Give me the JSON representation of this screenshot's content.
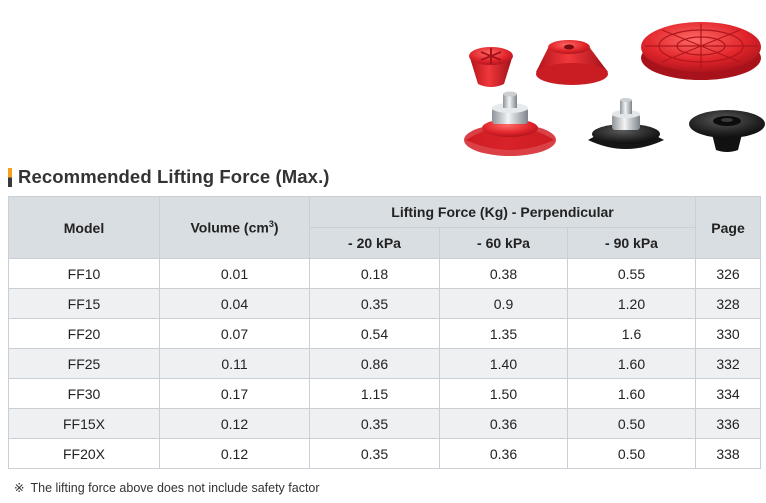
{
  "section": {
    "title": "Recommended Lifting Force (Max.)"
  },
  "table": {
    "headers": {
      "model": "Model",
      "volume_prefix": "Volume (cm",
      "volume_sup": "3",
      "volume_suffix": ")",
      "lifting_force": "Lifting Force (Kg) - Perpendicular",
      "page": "Page",
      "pressures": [
        "- 20 kPa",
        "- 60 kPa",
        "- 90 kPa"
      ]
    },
    "rows": [
      {
        "model": "FF10",
        "volume": "0.01",
        "f20": "0.18",
        "f60": "0.38",
        "f90": "0.55",
        "page": "326"
      },
      {
        "model": "FF15",
        "volume": "0.04",
        "f20": "0.35",
        "f60": "0.9",
        "f90": "1.20",
        "page": "328"
      },
      {
        "model": "FF20",
        "volume": "0.07",
        "f20": "0.54",
        "f60": "1.35",
        "f90": "1.6",
        "page": "330"
      },
      {
        "model": "FF25",
        "volume": "0.11",
        "f20": "0.86",
        "f60": "1.40",
        "f90": "1.60",
        "page": "332"
      },
      {
        "model": "FF30",
        "volume": "0.17",
        "f20": "1.15",
        "f60": "1.50",
        "f90": "1.60",
        "page": "334"
      },
      {
        "model": "FF15X",
        "volume": "0.12",
        "f20": "0.35",
        "f60": "0.36",
        "f90": "0.50",
        "page": "336"
      },
      {
        "model": "FF20X",
        "volume": "0.12",
        "f20": "0.35",
        "f60": "0.36",
        "f90": "0.50",
        "page": "338"
      }
    ]
  },
  "note": {
    "mark": "※",
    "text": "The lifting force above does not include safety factor"
  },
  "colors": {
    "header_bg": "#d9dee2",
    "stripe_bg": "#eef0f2",
    "border": "#c9cfd4",
    "accent_orange": "#f4a21b",
    "cup_red": "#e1252b",
    "cup_black": "#1e1e1e"
  },
  "images": {
    "product_photo": "vacuum-suction-cups"
  }
}
